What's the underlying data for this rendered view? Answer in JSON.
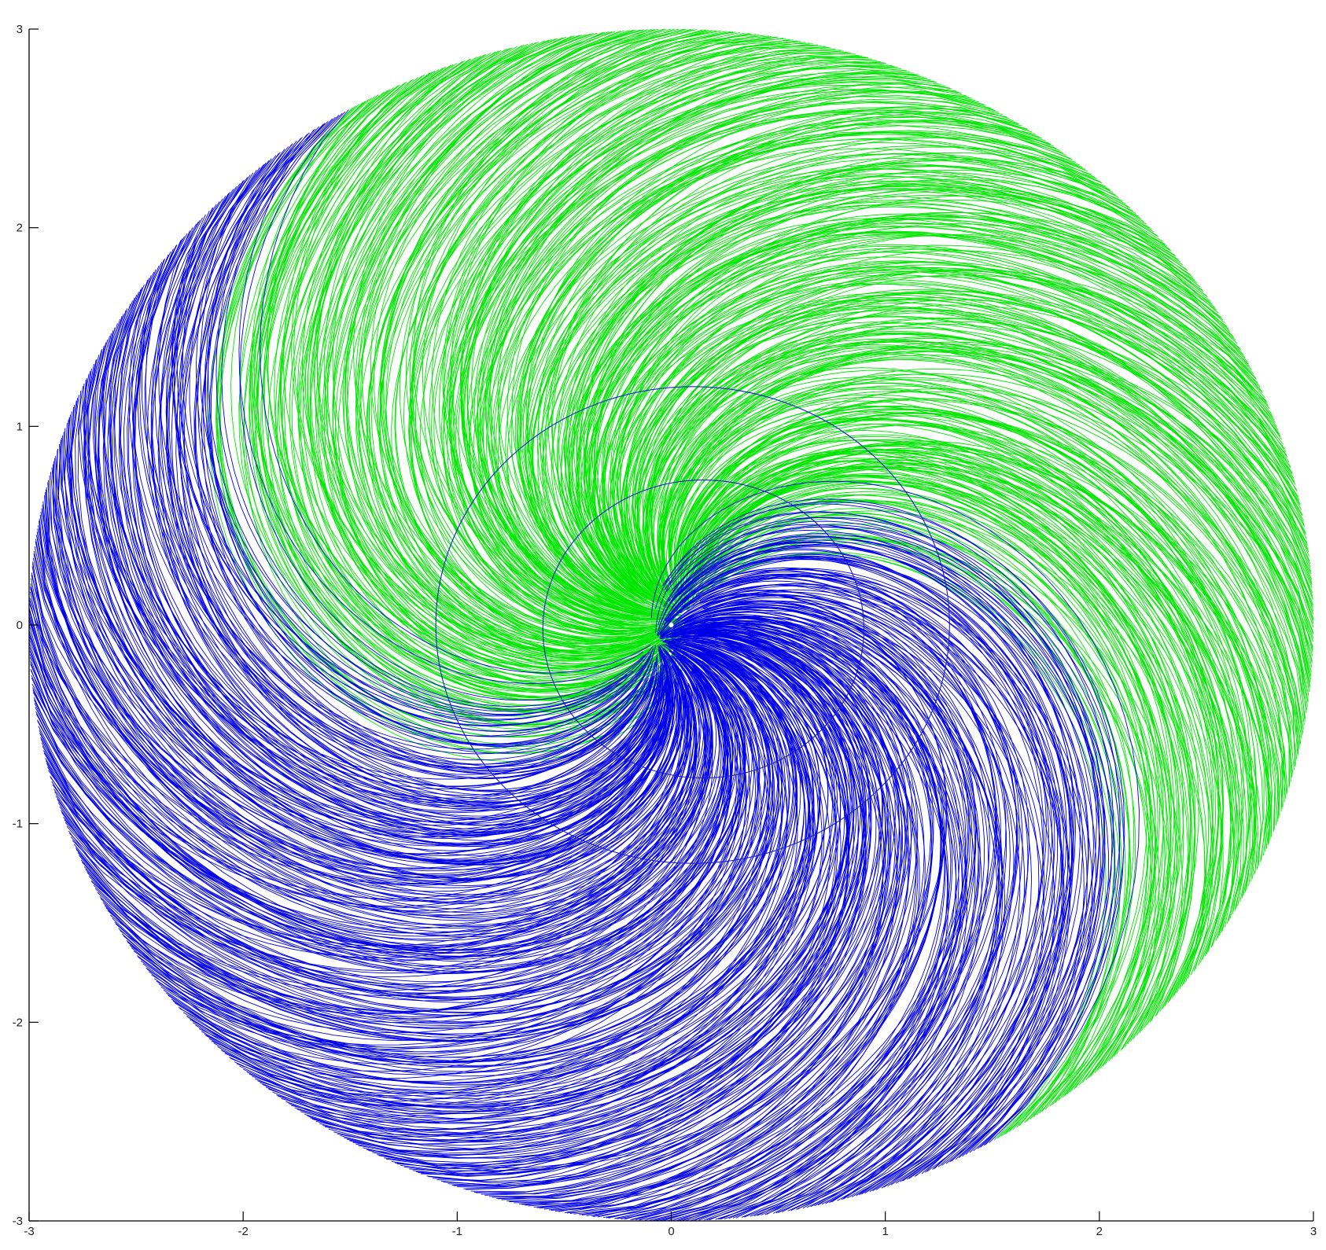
{
  "chart_data": {
    "type": "line",
    "title": "",
    "xlabel": "",
    "ylabel": "",
    "xlim": [
      -3,
      3
    ],
    "ylim": [
      -3,
      3
    ],
    "grid": false,
    "x_ticks": [
      -3,
      -2,
      -1,
      0,
      1,
      2,
      3
    ],
    "y_ticks": [
      -3,
      -2,
      -1,
      0,
      1,
      2,
      3
    ],
    "x_tick_labels": [
      "-3",
      "-2",
      "-1",
      "0",
      "1",
      "2",
      "3"
    ],
    "y_tick_labels": [
      "-3",
      "-2",
      "-1",
      "0",
      "1",
      "2",
      "3"
    ],
    "series": [
      {
        "name": "green trajectories",
        "color": "#00e600",
        "description": "spiral arcs running from the disk boundary (radius 3) into the origin, counter-clockwise swirl, covering the upper-right half",
        "boundary_radius": 3,
        "start_angle_range_deg": [
          -60,
          120
        ],
        "approx_curve_count": 520
      },
      {
        "name": "blue trajectories",
        "color": "#0000e6",
        "description": "spiral arcs running from the disk boundary (radius 3) into the origin, counter-clockwise swirl, covering the lower-left half",
        "boundary_radius": 3,
        "start_angle_range_deg": [
          120,
          300
        ],
        "approx_curve_count": 520
      }
    ],
    "reference_circles": [
      {
        "name": "outer reference circle",
        "center": [
          0.1,
          0.0
        ],
        "radius": 1.2,
        "color": "#1a1acc"
      },
      {
        "name": "inner reference circle",
        "center": [
          0.15,
          -0.02
        ],
        "radius": 0.75,
        "color": "#1a1acc"
      }
    ]
  }
}
